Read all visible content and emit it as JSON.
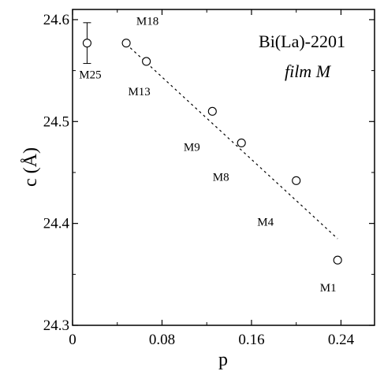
{
  "chart_data": {
    "type": "scatter",
    "title": "",
    "xlabel": "p",
    "ylabel": "c (Å)",
    "xlim": [
      0,
      0.27
    ],
    "ylim": [
      24.3,
      24.61
    ],
    "xticks": [
      0,
      0.08,
      0.16,
      0.24
    ],
    "xtick_labels": [
      "0",
      "0.08",
      "0.16",
      "0.24"
    ],
    "yticks": [
      24.3,
      24.4,
      24.5,
      24.6
    ],
    "ytick_labels": [
      "24.3",
      "24.4",
      "24.5",
      "24.6"
    ],
    "grid": false,
    "legend": "none",
    "annotations": {
      "material": "Bi(La)-2201",
      "sample": "film M"
    },
    "points": [
      {
        "label": "M25",
        "x": 0.013,
        "y": 24.577,
        "yerr": 0.02
      },
      {
        "label": "M18",
        "x": 0.048,
        "y": 24.577
      },
      {
        "label": "M13",
        "x": 0.066,
        "y": 24.559
      },
      {
        "label": "M9",
        "x": 0.125,
        "y": 24.51
      },
      {
        "label": "M8",
        "x": 0.151,
        "y": 24.479
      },
      {
        "label": "M4",
        "x": 0.2,
        "y": 24.442
      },
      {
        "label": "M1",
        "x": 0.237,
        "y": 24.364
      }
    ],
    "fit_line": {
      "style": "dashed",
      "x": [
        0.048,
        0.237
      ],
      "y": [
        24.576,
        24.385
      ]
    }
  }
}
